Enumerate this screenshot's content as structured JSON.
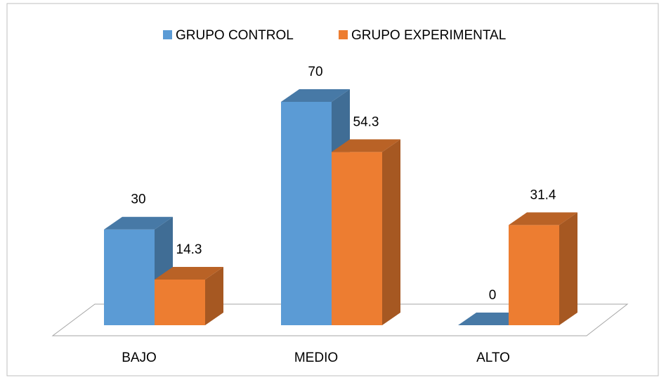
{
  "chart_data": {
    "type": "bar3d",
    "categories": [
      "BAJO",
      "MEDIO",
      "ALTO"
    ],
    "series": [
      {
        "name": "GRUPO CONTROL",
        "color": "#5b9bd5",
        "values": [
          30,
          70,
          0
        ]
      },
      {
        "name": "GRUPO EXPERIMENTAL",
        "color": "#ed7d31",
        "values": [
          14.3,
          54.3,
          31.4
        ]
      }
    ],
    "legend": "top"
  }
}
